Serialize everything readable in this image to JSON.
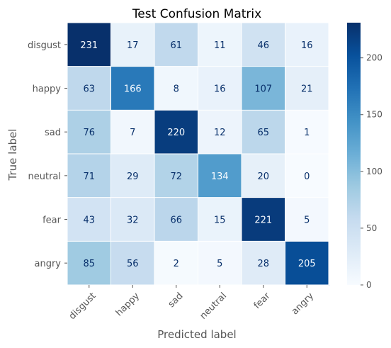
{
  "chart_data": {
    "type": "heatmap",
    "title": "Test Confusion Matrix",
    "xlabel": "Predicted label",
    "ylabel": "True label",
    "x_categories": [
      "disgust",
      "happy",
      "sad",
      "neutral",
      "fear",
      "angry"
    ],
    "y_categories": [
      "disgust",
      "happy",
      "sad",
      "neutral",
      "fear",
      "angry"
    ],
    "values": [
      [
        231,
        17,
        61,
        11,
        46,
        16
      ],
      [
        63,
        166,
        8,
        16,
        107,
        21
      ],
      [
        76,
        7,
        220,
        12,
        65,
        1
      ],
      [
        71,
        29,
        72,
        134,
        20,
        0
      ],
      [
        43,
        32,
        66,
        15,
        221,
        5
      ],
      [
        85,
        56,
        2,
        5,
        28,
        205
      ]
    ],
    "colormap": "Blues",
    "colorbar": {
      "range": [
        0,
        231
      ],
      "ticks": [
        0,
        50,
        100,
        150,
        200
      ]
    },
    "grid": true
  }
}
